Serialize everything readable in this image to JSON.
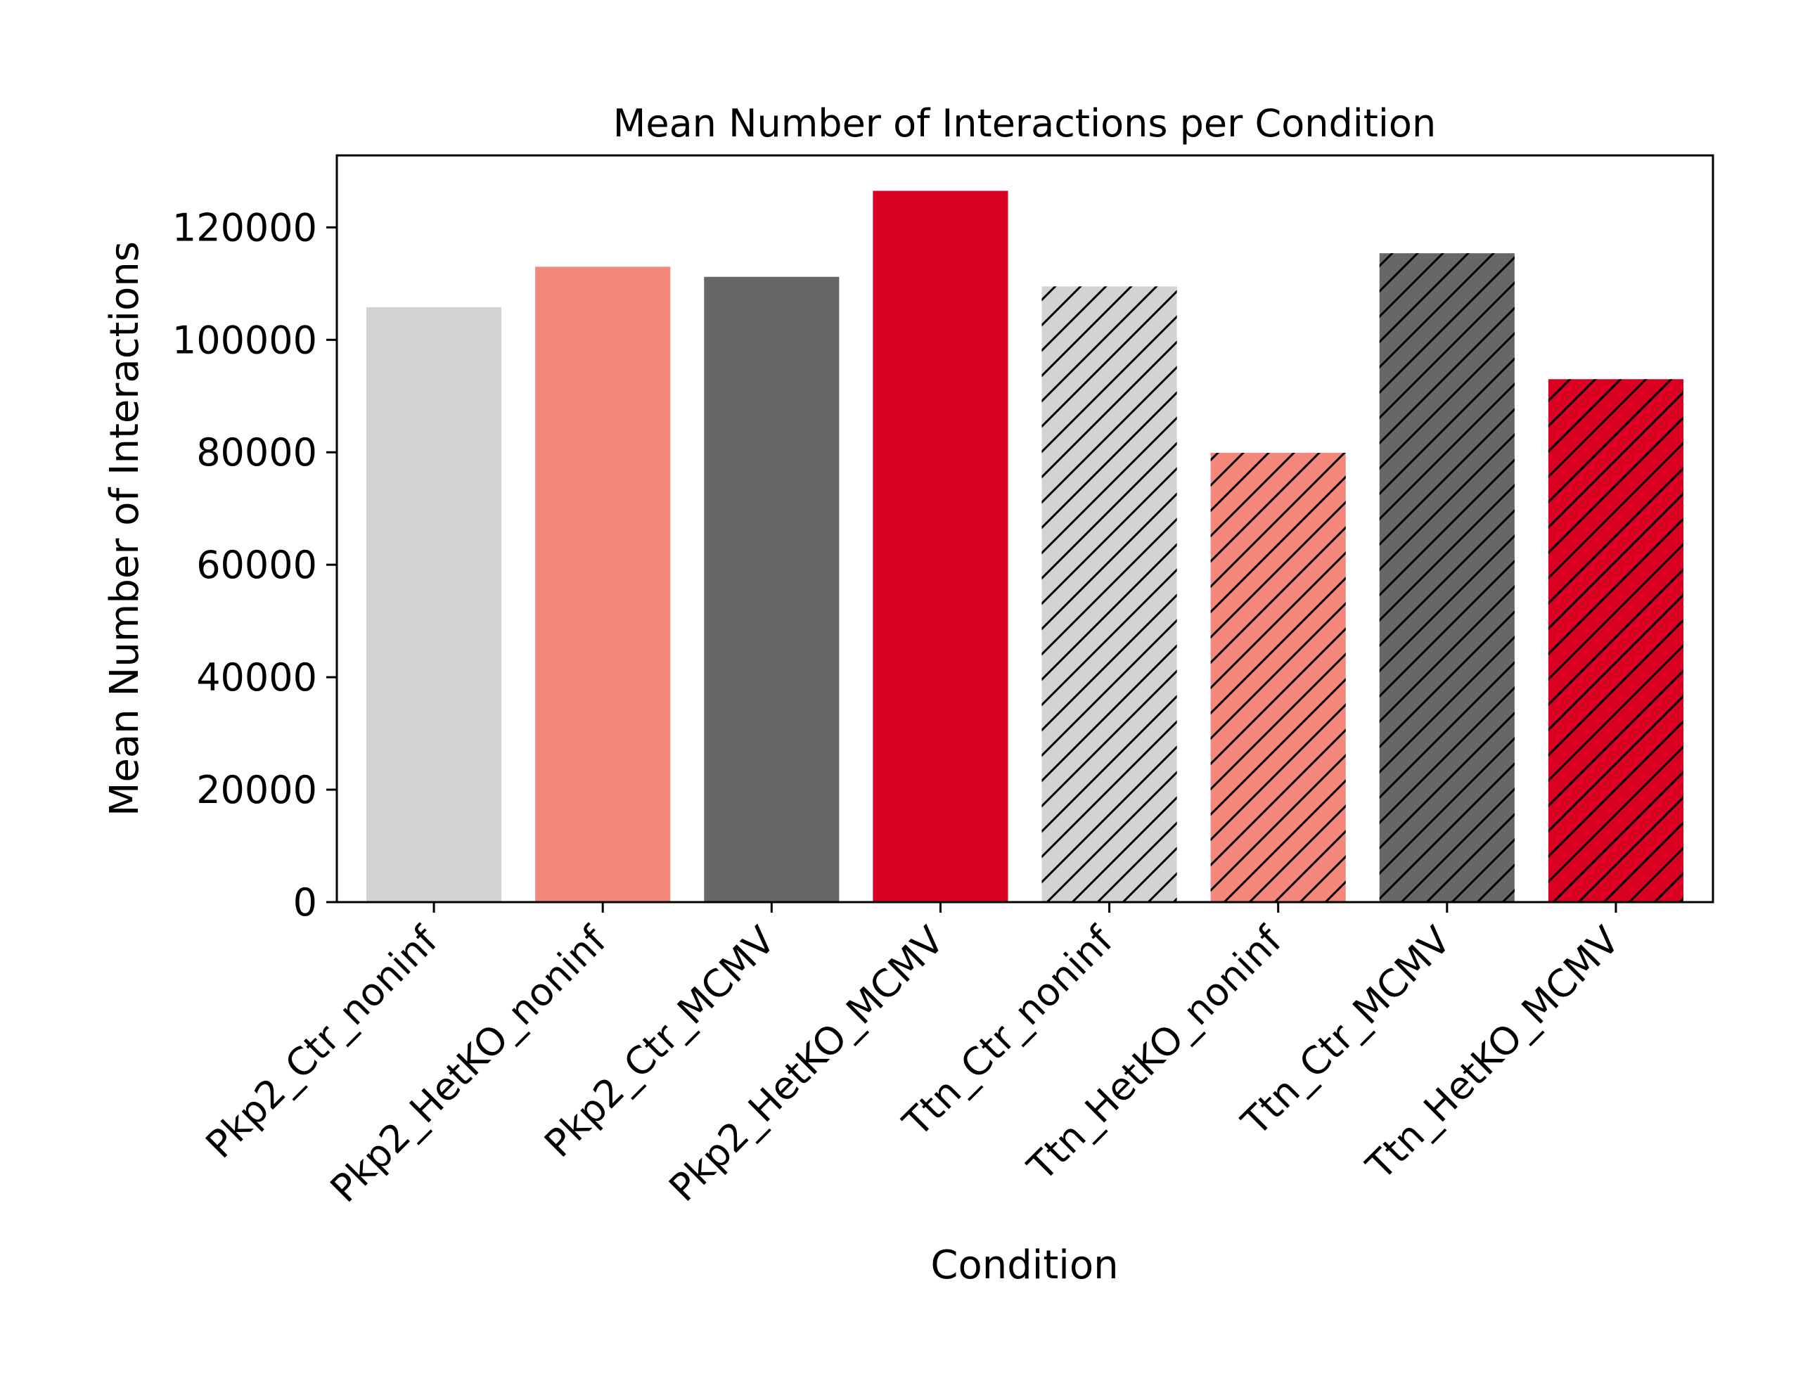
{
  "chart_data": {
    "type": "bar",
    "title": "Mean Number of Interactions per Condition",
    "xlabel": "Condition",
    "ylabel": "Mean Number of Interactions",
    "categories": [
      "Pkp2_Ctr_noninf",
      "Pkp2_HetKO_noninf",
      "Pkp2_Ctr_MCMV",
      "Pkp2_HetKO_MCMV",
      "Ttn_Ctr_noninf",
      "Ttn_HetKO_noninf",
      "Ttn_Ctr_MCMV",
      "Ttn_HetKO_MCMV"
    ],
    "values": [
      105800,
      113000,
      111200,
      126500,
      109500,
      79900,
      115400,
      93000
    ],
    "colors": [
      "#d3d3d3",
      "#f4877c",
      "#676767",
      "#d90022",
      "#d3d3d3",
      "#f4877c",
      "#676767",
      "#d90022"
    ],
    "hatched": [
      false,
      false,
      false,
      false,
      true,
      true,
      true,
      true
    ],
    "ylim": [
      0,
      132800
    ],
    "yticks": [
      0,
      20000,
      40000,
      60000,
      80000,
      100000,
      120000
    ],
    "ytick_labels": [
      "0",
      "20000",
      "40000",
      "60000",
      "80000",
      "100000",
      "120000"
    ],
    "grid": false,
    "legend": "none"
  }
}
